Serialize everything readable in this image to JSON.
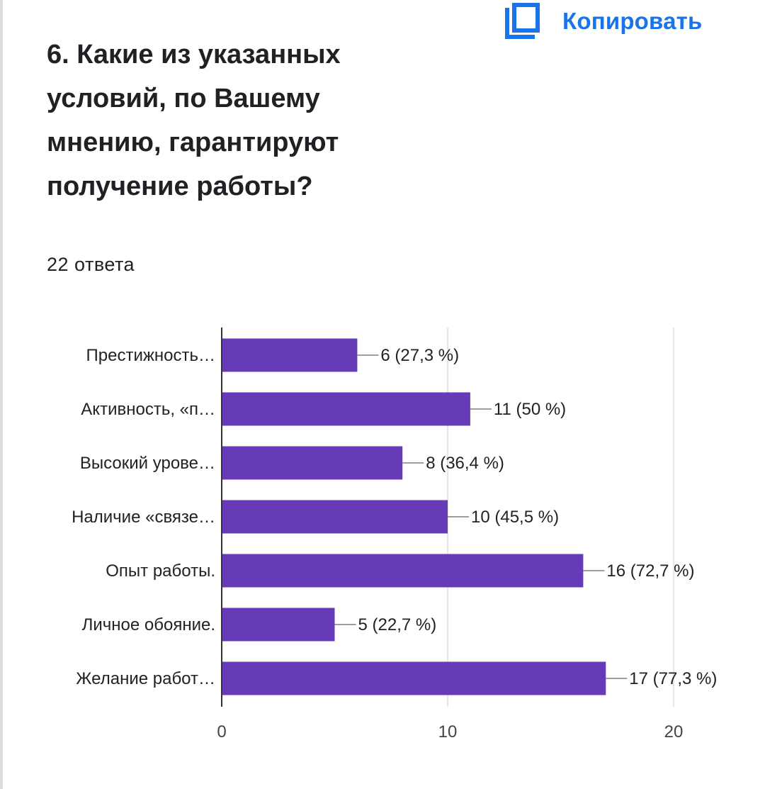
{
  "header": {
    "copy_label": "Копировать",
    "copy_icon": "copy-icon",
    "accent_color": "#1a73e8"
  },
  "question": {
    "title": "6. Какие из указанных условий, по Вашему мнению, гарантируют получение работы?",
    "responses": "22 ответа"
  },
  "chart_data": {
    "type": "bar",
    "orientation": "horizontal",
    "categories": [
      "Престижность…",
      "Активность, «п…",
      "Высокий урове…",
      "Наличие «связе…",
      "Опыт работы.",
      "Личное обояние.",
      "Желание работ…"
    ],
    "values": [
      6,
      11,
      8,
      10,
      16,
      5,
      17
    ],
    "value_labels": [
      "6 (27,3 %)",
      "11 (50 %)",
      "8 (36,4 %)",
      "10 (45,5 %)",
      "16 (72,7 %)",
      "5 (22,7 %)",
      "17 (77,3 %)"
    ],
    "title": "",
    "xlabel": "",
    "ylabel": "",
    "xlim": [
      0,
      20
    ],
    "xticks": [
      0,
      10,
      20
    ],
    "grid": true,
    "bar_color": "#673ab7",
    "legend": "none"
  }
}
